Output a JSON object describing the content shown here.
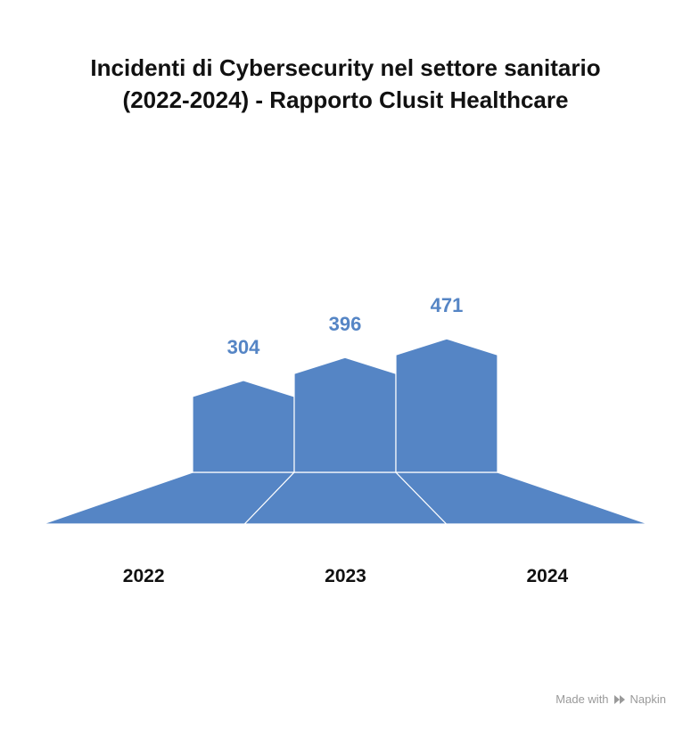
{
  "chart_data": {
    "type": "bar",
    "title_lines": [
      "Incidenti di Cybersecurity nel settore sanitario",
      "(2022-2024) - Rapporto Clusit Healthcare"
    ],
    "categories": [
      "2022",
      "2023",
      "2024"
    ],
    "values": [
      304,
      396,
      471
    ],
    "data_labels": [
      "304",
      "396",
      "471"
    ],
    "grid": false,
    "legend": "none",
    "colors": {
      "bar": "#5585c5",
      "label": "#5585c5",
      "category": "#111111"
    }
  },
  "watermark": {
    "text": "Made with",
    "brand": "Napkin",
    "icon": "napkin-logo-icon"
  }
}
